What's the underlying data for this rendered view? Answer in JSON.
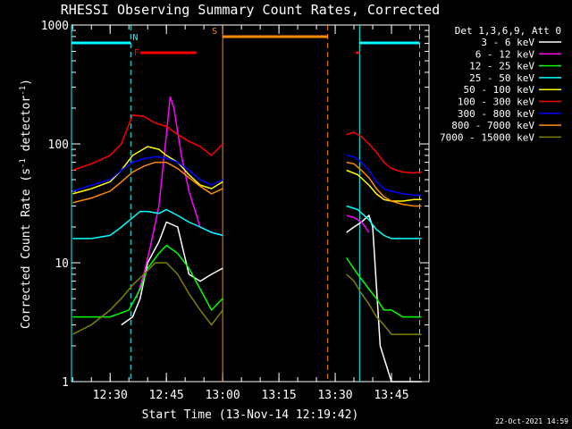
{
  "chart_data": {
    "type": "line",
    "title": "RHESSI Observing Summary Count Rates, Corrected",
    "xlabel": "Start Time (13-Nov-14 12:19:42)",
    "ylabel_main": "Corrected Count Rate (s",
    "ylabel_sup1": "-1",
    "ylabel_mid": " detector",
    "ylabel_sup2": "-1",
    "ylabel_end": ")",
    "y_scale": "log",
    "ylim": [
      1,
      1000
    ],
    "x_range": [
      "12:19:42",
      "13:55:00"
    ],
    "x_ticks": [
      "12:30",
      "12:45",
      "13:00",
      "13:15",
      "13:30",
      "13:45"
    ],
    "y_ticks": [
      "1",
      "10",
      "100",
      "1000"
    ],
    "grid": false,
    "legend_title": "Det 1,3,6,9, Att 0",
    "legend_position": "right",
    "timestamp": "22-Oct-2021 14:59",
    "series": [
      {
        "name": "3 - 6 keV",
        "color": "#ffffff",
        "x": [
          "12:20",
          "12:25",
          "12:30",
          "12:33",
          "12:36",
          "12:38",
          "12:40",
          "12:43",
          "12:45",
          "12:48",
          "12:51",
          "12:54",
          "12:57",
          "13:00",
          "13:33",
          "13:35",
          "13:37",
          "13:39",
          "13:40",
          "13:42",
          "13:45",
          "13:48",
          "13:51",
          "13:53"
        ],
        "y": [
          null,
          null,
          null,
          3,
          3.5,
          5,
          10,
          15,
          22,
          20,
          8,
          7,
          8,
          9,
          18,
          20,
          22,
          25,
          20,
          2,
          1,
          1,
          1,
          1
        ]
      },
      {
        "name": "6 - 12 keV",
        "color": "#ff00ff",
        "x": [
          "12:37",
          "12:39",
          "12:41",
          "12:43",
          "12:45",
          "12:46",
          "12:47",
          "12:49",
          "12:51",
          "12:54",
          "12:57",
          "13:00",
          "13:33",
          "13:35",
          "13:37",
          "13:38",
          "13:39"
        ],
        "y": [
          5,
          8,
          15,
          30,
          120,
          250,
          200,
          80,
          40,
          20,
          18,
          17,
          25,
          24,
          22,
          20,
          18
        ]
      },
      {
        "name": "12 - 25 keV",
        "color": "#00ff00",
        "x": [
          "12:20",
          "12:25",
          "12:30",
          "12:35",
          "12:38",
          "12:40",
          "12:43",
          "12:45",
          "12:48",
          "12:51",
          "12:54",
          "12:57",
          "13:00",
          "13:33",
          "13:36",
          "13:39",
          "13:41",
          "13:43",
          "13:45",
          "13:48",
          "13:51",
          "13:53"
        ],
        "y": [
          3.5,
          3.5,
          3.5,
          4,
          6,
          9,
          12,
          14,
          12,
          9,
          6,
          4,
          5,
          11,
          8,
          6,
          5,
          4,
          4,
          3.5,
          3.5,
          3.5
        ]
      },
      {
        "name": "25 - 50 keV",
        "color": "#00ffff",
        "x": [
          "12:20",
          "12:25",
          "12:30",
          "12:33",
          "12:36",
          "12:38",
          "12:40",
          "12:43",
          "12:45",
          "12:48",
          "12:51",
          "12:54",
          "12:57",
          "13:00",
          "13:33",
          "13:36",
          "13:39",
          "13:41",
          "13:43",
          "13:45",
          "13:48",
          "13:51",
          "13:53"
        ],
        "y": [
          16,
          16,
          17,
          20,
          24,
          27,
          27,
          26,
          28,
          25,
          22,
          20,
          18,
          17,
          30,
          28,
          23,
          19,
          17,
          16,
          16,
          16,
          16
        ]
      },
      {
        "name": "50 - 100 keV",
        "color": "#ffff00",
        "x": [
          "12:20",
          "12:25",
          "12:30",
          "12:33",
          "12:36",
          "12:40",
          "12:43",
          "12:45",
          "12:48",
          "12:51",
          "12:54",
          "12:57",
          "13:00",
          "13:33",
          "13:36",
          "13:39",
          "13:41",
          "13:43",
          "13:45",
          "13:48",
          "13:51",
          "13:53"
        ],
        "y": [
          38,
          42,
          48,
          60,
          80,
          95,
          90,
          80,
          70,
          55,
          45,
          42,
          48,
          60,
          55,
          45,
          38,
          34,
          33,
          33,
          34,
          34
        ]
      },
      {
        "name": "100 - 300 keV",
        "color": "#ff0000",
        "x": [
          "12:20",
          "12:25",
          "12:30",
          "12:33",
          "12:36",
          "12:39",
          "12:42",
          "12:45",
          "12:48",
          "12:51",
          "12:54",
          "12:57",
          "13:00",
          "13:33",
          "13:35",
          "13:37",
          "13:39",
          "13:41",
          "13:43",
          "13:45",
          "13:48",
          "13:51",
          "13:53"
        ],
        "y": [
          60,
          68,
          80,
          100,
          175,
          170,
          150,
          140,
          120,
          105,
          95,
          80,
          100,
          120,
          125,
          115,
          100,
          85,
          70,
          62,
          58,
          57,
          58
        ]
      },
      {
        "name": "300 - 800 keV",
        "color": "#0000ff",
        "x": [
          "12:20",
          "12:25",
          "12:30",
          "12:33",
          "12:36",
          "12:39",
          "12:42",
          "12:45",
          "12:48",
          "12:51",
          "12:54",
          "12:57",
          "13:00",
          "13:33",
          "13:35",
          "13:37",
          "13:39",
          "13:41",
          "13:43",
          "13:45",
          "13:48",
          "13:51",
          "13:53"
        ],
        "y": [
          40,
          45,
          50,
          60,
          70,
          75,
          78,
          76,
          70,
          60,
          50,
          45,
          50,
          80,
          78,
          70,
          60,
          48,
          42,
          40,
          38,
          37,
          37
        ]
      },
      {
        "name": "800 - 7000 keV",
        "color": "#ff8c00",
        "x": [
          "12:20",
          "12:25",
          "12:30",
          "12:33",
          "12:36",
          "12:39",
          "12:42",
          "12:45",
          "12:48",
          "12:51",
          "12:54",
          "12:57",
          "13:00",
          "13:33",
          "13:35",
          "13:37",
          "13:39",
          "13:41",
          "13:43",
          "13:45",
          "13:48",
          "13:51",
          "13:53"
        ],
        "y": [
          32,
          35,
          40,
          48,
          58,
          65,
          70,
          70,
          62,
          52,
          44,
          38,
          42,
          70,
          68,
          60,
          52,
          42,
          36,
          33,
          31,
          30,
          30
        ]
      },
      {
        "name": "7000 - 15000 keV",
        "color": "#808000",
        "x": [
          "12:20",
          "12:25",
          "12:30",
          "12:33",
          "12:36",
          "12:39",
          "12:42",
          "12:45",
          "12:48",
          "12:51",
          "12:54",
          "12:57",
          "13:00",
          "13:33",
          "13:35",
          "13:37",
          "13:39",
          "13:41",
          "13:43",
          "13:45",
          "13:48",
          "13:51",
          "13:53"
        ],
        "y": [
          2.5,
          3,
          4,
          5,
          6.5,
          8,
          10,
          10,
          8,
          5.5,
          4,
          3,
          4,
          8,
          7,
          5.5,
          4.5,
          3.5,
          3,
          2.5,
          2.5,
          2.5,
          2.5
        ]
      }
    ],
    "markers": {
      "night": [
        {
          "label": "N",
          "start": "12:19:42",
          "end": "12:35:30",
          "color": "#00ffff"
        },
        {
          "label": "",
          "start": "13:36:30",
          "end": "13:52:30",
          "color": "#00ffff"
        }
      ],
      "saa": [
        {
          "label": "S",
          "start": "13:00:00",
          "end": "13:28:00",
          "color": "#ff8c00"
        }
      ],
      "flare": [
        {
          "label": "F",
          "start": "12:38:00",
          "end": "12:53:00",
          "color": "#ff0000"
        },
        {
          "label": "",
          "start": "13:35:30",
          "end": "13:36:30",
          "color": "#ff0000"
        }
      ]
    }
  }
}
